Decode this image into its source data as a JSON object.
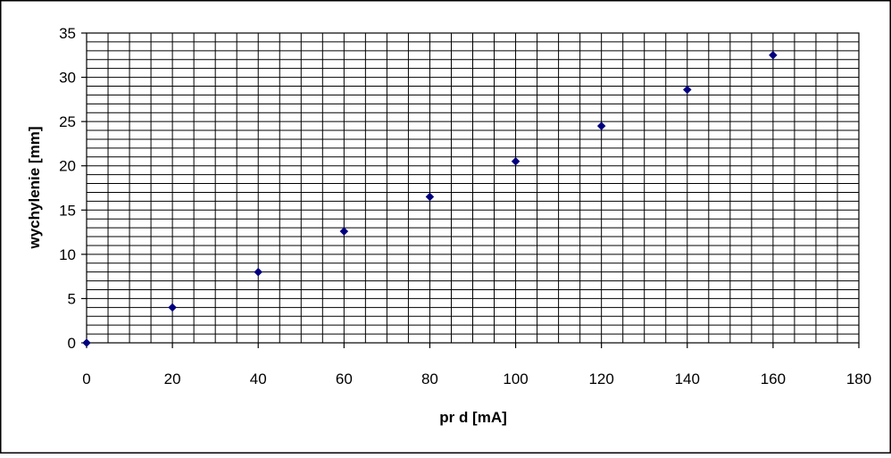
{
  "chart_data": {
    "type": "scatter",
    "title": "",
    "xlabel": "pr  d [mA]",
    "ylabel": "wychylenie [mm]",
    "xlim": [
      0,
      180
    ],
    "ylim": [
      0,
      35
    ],
    "xticks": [
      0,
      20,
      40,
      60,
      80,
      100,
      120,
      140,
      160,
      180
    ],
    "yticks": [
      0,
      5,
      10,
      15,
      20,
      25,
      30,
      35
    ],
    "x_minor_step": 5,
    "y_minor_step": 1,
    "grid": true,
    "legend": "none",
    "series": [
      {
        "x": [
          0,
          20,
          40,
          60,
          80,
          100,
          120,
          140,
          160
        ],
        "y": [
          0,
          4,
          8,
          12.6,
          16.5,
          20.5,
          24.5,
          28.6,
          32.5
        ],
        "color": "#000080",
        "marker": "diamond"
      }
    ]
  }
}
